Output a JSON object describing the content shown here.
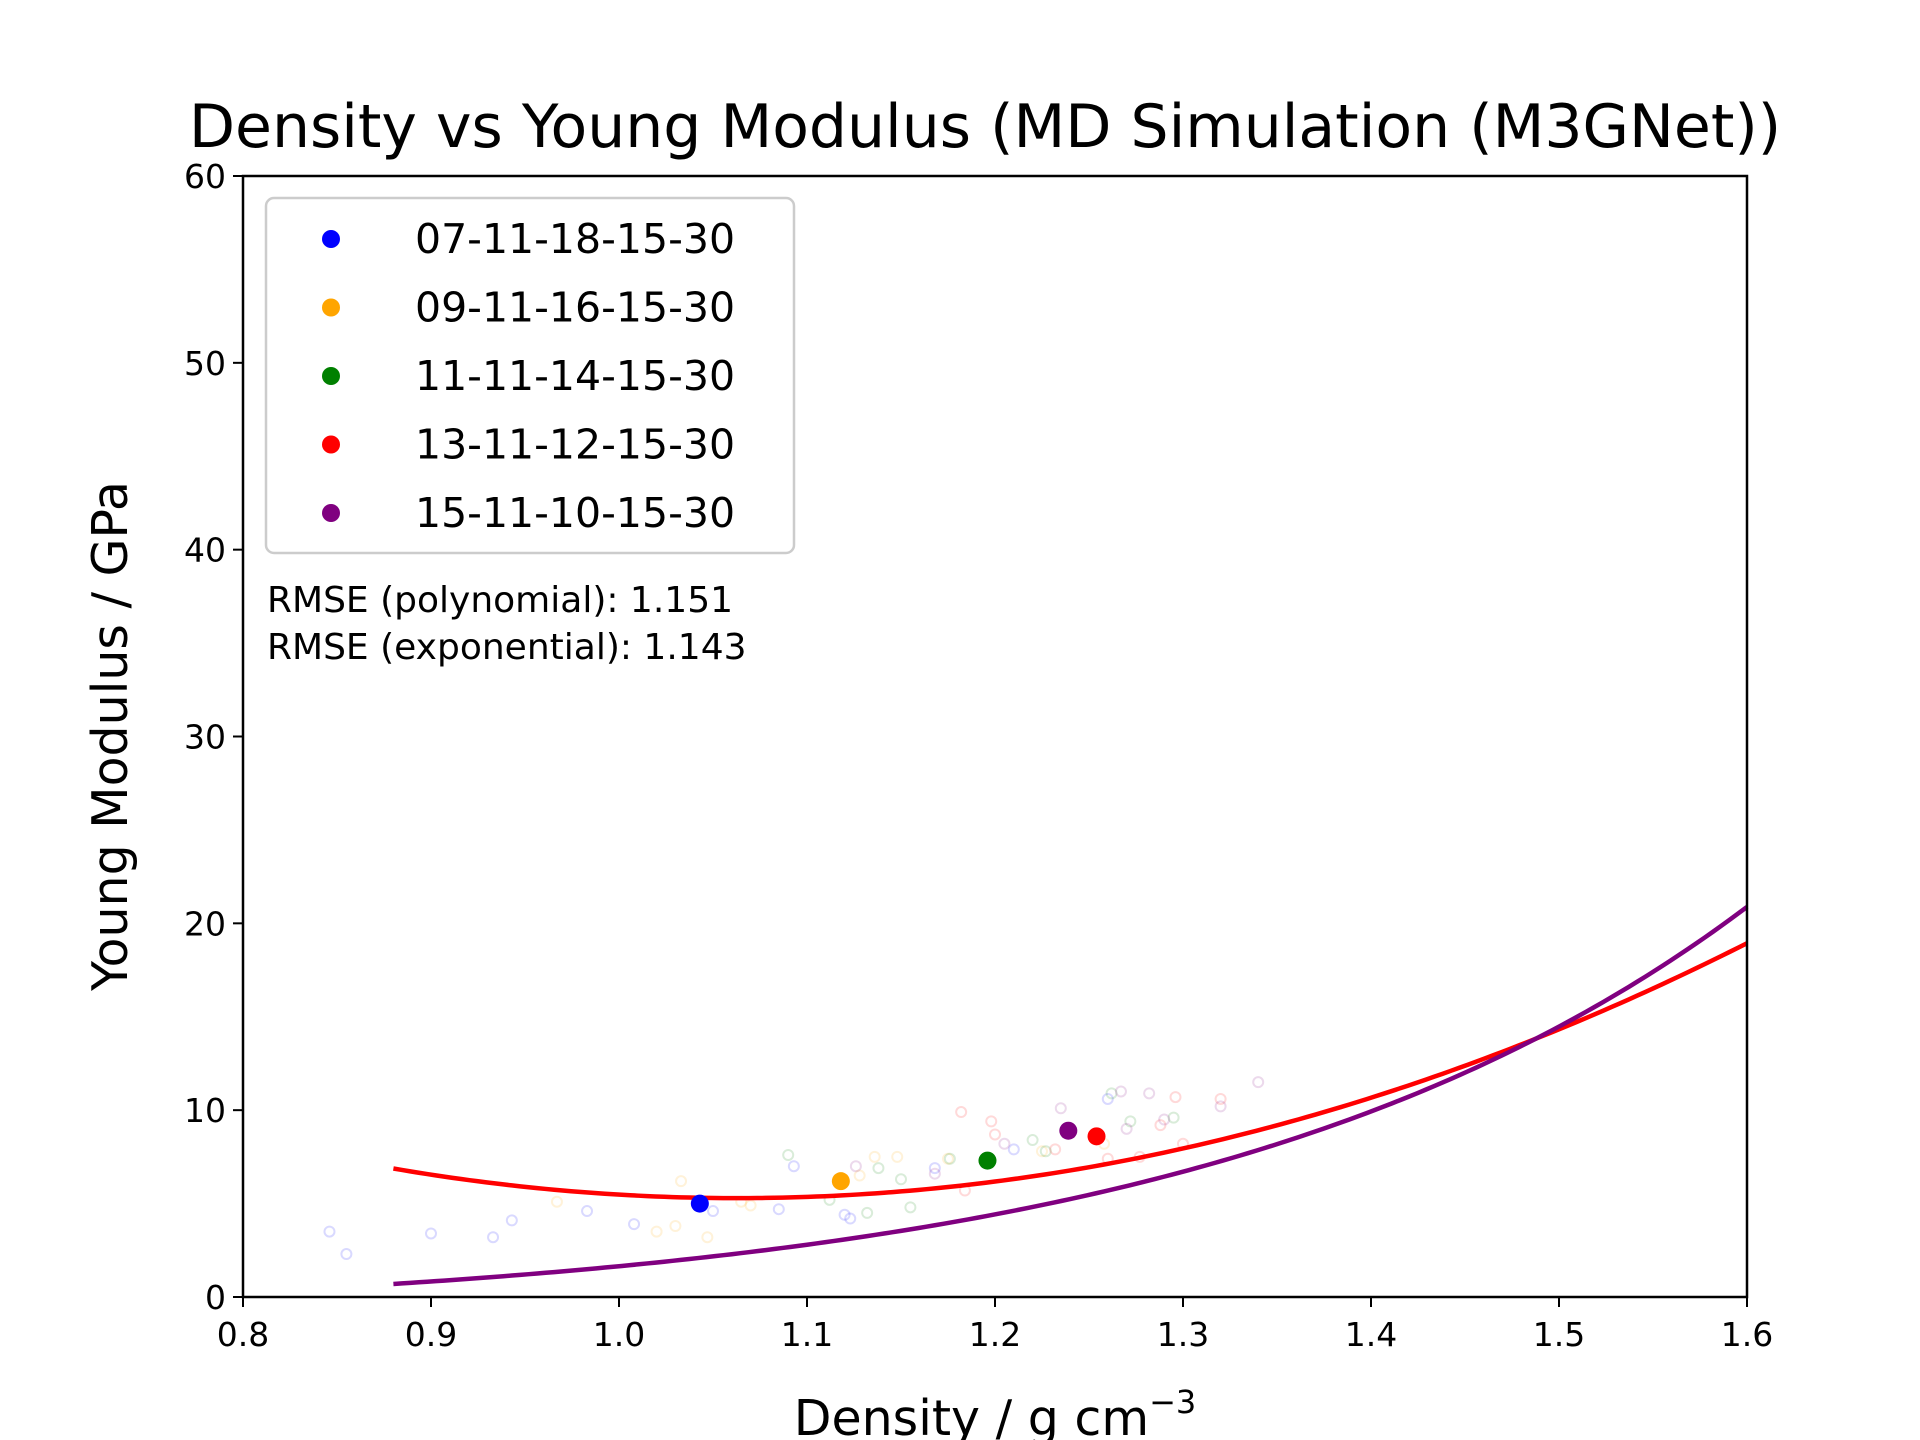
{
  "chart_data": {
    "type": "scatter",
    "title": "Density vs Young Modulus (MD Simulation (M3GNet))",
    "xlabel": "Density / g cm",
    "xlabel_sup": "−3",
    "ylabel": "Young Modulus / GPa",
    "xlim": [
      0.8,
      1.6
    ],
    "ylim": [
      0,
      60
    ],
    "xticks": [
      0.8,
      0.9,
      1.0,
      1.1,
      1.2,
      1.3,
      1.4,
      1.5,
      1.6
    ],
    "xtick_labels": [
      "0.8",
      "0.9",
      "1.0",
      "1.1",
      "1.2",
      "1.3",
      "1.4",
      "1.5",
      "1.6"
    ],
    "yticks": [
      0,
      10,
      20,
      30,
      40,
      50,
      60
    ],
    "ytick_labels": [
      "0",
      "10",
      "20",
      "30",
      "40",
      "50",
      "60"
    ],
    "grid": false,
    "legend_position": "top-left",
    "series": [
      {
        "name": "07-11-18-15-30",
        "color": "#0000ff",
        "mean": {
          "x": 1.043,
          "y": 5.0
        },
        "points": [
          {
            "x": 0.846,
            "y": 3.5
          },
          {
            "x": 0.855,
            "y": 2.3
          },
          {
            "x": 0.9,
            "y": 3.4
          },
          {
            "x": 0.933,
            "y": 3.2
          },
          {
            "x": 0.943,
            "y": 4.1
          },
          {
            "x": 0.983,
            "y": 4.6
          },
          {
            "x": 1.008,
            "y": 3.9
          },
          {
            "x": 1.05,
            "y": 4.6
          },
          {
            "x": 1.085,
            "y": 4.7
          },
          {
            "x": 1.093,
            "y": 7.0
          },
          {
            "x": 1.12,
            "y": 4.4
          },
          {
            "x": 1.123,
            "y": 4.2
          },
          {
            "x": 1.168,
            "y": 6.9
          },
          {
            "x": 1.21,
            "y": 7.9
          },
          {
            "x": 1.26,
            "y": 10.6
          }
        ]
      },
      {
        "name": "09-11-16-15-30",
        "color": "#ffa500",
        "mean": {
          "x": 1.118,
          "y": 6.2
        },
        "points": [
          {
            "x": 0.967,
            "y": 5.1
          },
          {
            "x": 1.02,
            "y": 3.5
          },
          {
            "x": 1.03,
            "y": 3.8
          },
          {
            "x": 1.033,
            "y": 6.2
          },
          {
            "x": 1.047,
            "y": 3.2
          },
          {
            "x": 1.065,
            "y": 5.1
          },
          {
            "x": 1.07,
            "y": 4.9
          },
          {
            "x": 1.128,
            "y": 6.5
          },
          {
            "x": 1.136,
            "y": 7.5
          },
          {
            "x": 1.148,
            "y": 7.5
          },
          {
            "x": 1.175,
            "y": 7.4
          },
          {
            "x": 1.225,
            "y": 7.8
          },
          {
            "x": 1.258,
            "y": 8.2
          }
        ]
      },
      {
        "name": "11-11-14-15-30",
        "color": "#008000",
        "mean": {
          "x": 1.196,
          "y": 7.3
        },
        "points": [
          {
            "x": 1.09,
            "y": 7.6
          },
          {
            "x": 1.112,
            "y": 5.2
          },
          {
            "x": 1.132,
            "y": 4.5
          },
          {
            "x": 1.138,
            "y": 6.9
          },
          {
            "x": 1.15,
            "y": 6.3
          },
          {
            "x": 1.155,
            "y": 4.8
          },
          {
            "x": 1.176,
            "y": 7.4
          },
          {
            "x": 1.22,
            "y": 8.4
          },
          {
            "x": 1.227,
            "y": 7.8
          },
          {
            "x": 1.262,
            "y": 10.9
          },
          {
            "x": 1.272,
            "y": 9.4
          },
          {
            "x": 1.295,
            "y": 9.6
          }
        ]
      },
      {
        "name": "13-11-12-15-30",
        "color": "#ff0000",
        "mean": {
          "x": 1.254,
          "y": 8.6
        },
        "points": [
          {
            "x": 1.184,
            "y": 5.7
          },
          {
            "x": 1.182,
            "y": 9.9
          },
          {
            "x": 1.198,
            "y": 9.4
          },
          {
            "x": 1.2,
            "y": 8.7
          },
          {
            "x": 1.232,
            "y": 7.9
          },
          {
            "x": 1.26,
            "y": 7.4
          },
          {
            "x": 1.277,
            "y": 7.5
          },
          {
            "x": 1.296,
            "y": 10.7
          },
          {
            "x": 1.3,
            "y": 8.2
          },
          {
            "x": 1.32,
            "y": 10.6
          },
          {
            "x": 1.288,
            "y": 9.2
          }
        ]
      },
      {
        "name": "15-11-10-15-30",
        "color": "#800080",
        "mean": {
          "x": 1.239,
          "y": 8.9
        },
        "points": [
          {
            "x": 1.126,
            "y": 7.0
          },
          {
            "x": 1.168,
            "y": 6.6
          },
          {
            "x": 1.205,
            "y": 8.2
          },
          {
            "x": 1.235,
            "y": 10.1
          },
          {
            "x": 1.267,
            "y": 11.0
          },
          {
            "x": 1.27,
            "y": 9.0
          },
          {
            "x": 1.282,
            "y": 10.9
          },
          {
            "x": 1.29,
            "y": 9.5
          },
          {
            "x": 1.34,
            "y": 11.5
          },
          {
            "x": 1.32,
            "y": 10.2
          }
        ]
      }
    ],
    "fits": [
      {
        "kind": "polynomial",
        "color": "#ff0000",
        "coefficients": {
          "a": 47.31,
          "b": -100.58,
          "c": 58.75
        },
        "x_range": [
          0.88,
          1.6
        ]
      },
      {
        "kind": "exponential",
        "color": "#800080",
        "coefficients": {
          "A": 0.0908,
          "k": 3.4325,
          "C": -1.163
        },
        "x_range": [
          0.88,
          1.6
        ]
      }
    ],
    "annotations": [
      "RMSE (polynomial): 1.151",
      "RMSE (exponential): 1.143"
    ]
  }
}
